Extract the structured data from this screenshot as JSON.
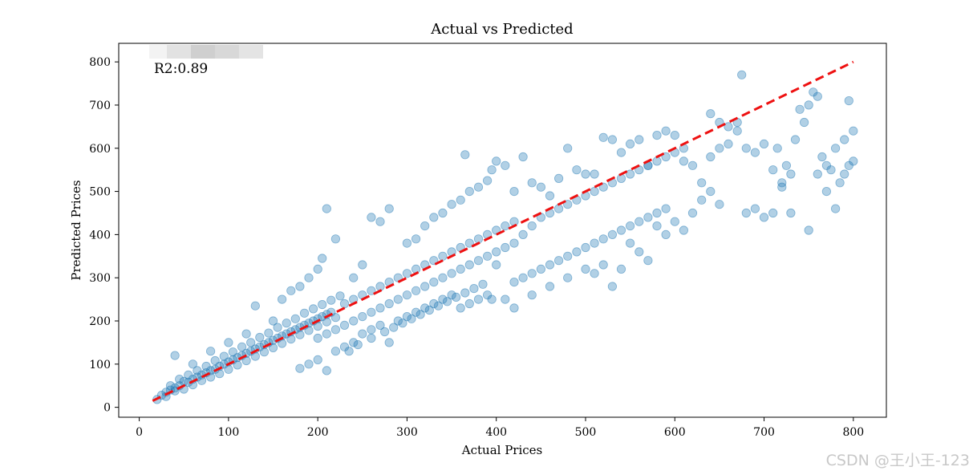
{
  "chart_data": {
    "type": "scatter",
    "title": "Actual vs Predicted",
    "xlabel": "Actual Prices",
    "ylabel": "Predicted Prices",
    "xlim": [
      -23,
      837
    ],
    "ylim": [
      -23,
      843
    ],
    "xticks": [
      0,
      100,
      200,
      300,
      400,
      500,
      600,
      700,
      800
    ],
    "yticks": [
      0,
      100,
      200,
      300,
      400,
      500,
      600,
      700,
      800
    ],
    "grid": false,
    "annotation": "R2:0.89",
    "series": [
      {
        "kind": "scatter",
        "color": "#1f77b4",
        "alpha": 0.35,
        "points": [
          [
            20,
            18
          ],
          [
            25,
            28
          ],
          [
            30,
            35
          ],
          [
            35,
            40
          ],
          [
            40,
            45
          ],
          [
            45,
            50
          ],
          [
            50,
            60
          ],
          [
            55,
            58
          ],
          [
            60,
            65
          ],
          [
            65,
            70
          ],
          [
            70,
            75
          ],
          [
            75,
            80
          ],
          [
            80,
            85
          ],
          [
            85,
            88
          ],
          [
            90,
            95
          ],
          [
            95,
            100
          ],
          [
            100,
            105
          ],
          [
            105,
            110
          ],
          [
            110,
            115
          ],
          [
            115,
            120
          ],
          [
            120,
            125
          ],
          [
            125,
            130
          ],
          [
            130,
            135
          ],
          [
            135,
            140
          ],
          [
            140,
            145
          ],
          [
            145,
            150
          ],
          [
            150,
            155
          ],
          [
            155,
            160
          ],
          [
            160,
            165
          ],
          [
            165,
            170
          ],
          [
            170,
            175
          ],
          [
            175,
            180
          ],
          [
            180,
            185
          ],
          [
            185,
            190
          ],
          [
            190,
            195
          ],
          [
            195,
            200
          ],
          [
            200,
            205
          ],
          [
            205,
            210
          ],
          [
            210,
            215
          ],
          [
            215,
            220
          ],
          [
            30,
            25
          ],
          [
            40,
            38
          ],
          [
            50,
            42
          ],
          [
            60,
            52
          ],
          [
            70,
            62
          ],
          [
            80,
            70
          ],
          [
            90,
            78
          ],
          [
            100,
            88
          ],
          [
            110,
            98
          ],
          [
            120,
            108
          ],
          [
            130,
            118
          ],
          [
            140,
            128
          ],
          [
            150,
            138
          ],
          [
            160,
            148
          ],
          [
            170,
            158
          ],
          [
            180,
            168
          ],
          [
            190,
            178
          ],
          [
            200,
            188
          ],
          [
            210,
            198
          ],
          [
            220,
            208
          ],
          [
            35,
            50
          ],
          [
            45,
            65
          ],
          [
            55,
            75
          ],
          [
            65,
            85
          ],
          [
            75,
            95
          ],
          [
            85,
            108
          ],
          [
            95,
            118
          ],
          [
            105,
            128
          ],
          [
            115,
            140
          ],
          [
            125,
            150
          ],
          [
            135,
            162
          ],
          [
            145,
            172
          ],
          [
            155,
            185
          ],
          [
            165,
            195
          ],
          [
            175,
            205
          ],
          [
            185,
            218
          ],
          [
            195,
            228
          ],
          [
            205,
            238
          ],
          [
            215,
            248
          ],
          [
            225,
            258
          ],
          [
            40,
            120
          ],
          [
            60,
            100
          ],
          [
            80,
            130
          ],
          [
            100,
            150
          ],
          [
            120,
            170
          ],
          [
            130,
            235
          ],
          [
            150,
            200
          ],
          [
            160,
            250
          ],
          [
            170,
            270
          ],
          [
            180,
            280
          ],
          [
            190,
            300
          ],
          [
            200,
            320
          ],
          [
            205,
            345
          ],
          [
            210,
            460
          ],
          [
            220,
            390
          ],
          [
            240,
            300
          ],
          [
            250,
            330
          ],
          [
            260,
            440
          ],
          [
            270,
            430
          ],
          [
            280,
            460
          ],
          [
            220,
            180
          ],
          [
            230,
            190
          ],
          [
            240,
            200
          ],
          [
            250,
            210
          ],
          [
            260,
            220
          ],
          [
            270,
            230
          ],
          [
            280,
            240
          ],
          [
            290,
            250
          ],
          [
            300,
            260
          ],
          [
            310,
            270
          ],
          [
            320,
            280
          ],
          [
            330,
            290
          ],
          [
            340,
            300
          ],
          [
            350,
            310
          ],
          [
            360,
            320
          ],
          [
            370,
            330
          ],
          [
            380,
            340
          ],
          [
            390,
            350
          ],
          [
            400,
            360
          ],
          [
            410,
            370
          ],
          [
            230,
            240
          ],
          [
            240,
            250
          ],
          [
            250,
            260
          ],
          [
            260,
            270
          ],
          [
            270,
            280
          ],
          [
            280,
            290
          ],
          [
            290,
            300
          ],
          [
            300,
            310
          ],
          [
            310,
            320
          ],
          [
            320,
            330
          ],
          [
            330,
            340
          ],
          [
            340,
            350
          ],
          [
            350,
            360
          ],
          [
            360,
            370
          ],
          [
            370,
            380
          ],
          [
            380,
            390
          ],
          [
            390,
            400
          ],
          [
            400,
            410
          ],
          [
            410,
            420
          ],
          [
            420,
            430
          ],
          [
            200,
            160
          ],
          [
            210,
            170
          ],
          [
            220,
            130
          ],
          [
            230,
            140
          ],
          [
            240,
            150
          ],
          [
            250,
            170
          ],
          [
            260,
            180
          ],
          [
            270,
            190
          ],
          [
            280,
            150
          ],
          [
            290,
            200
          ],
          [
            300,
            210
          ],
          [
            310,
            220
          ],
          [
            320,
            230
          ],
          [
            330,
            240
          ],
          [
            340,
            250
          ],
          [
            350,
            260
          ],
          [
            360,
            230
          ],
          [
            370,
            240
          ],
          [
            380,
            250
          ],
          [
            390,
            260
          ],
          [
            180,
            90
          ],
          [
            190,
            100
          ],
          [
            200,
            110
          ],
          [
            210,
            85
          ],
          [
            235,
            130
          ],
          [
            245,
            145
          ],
          [
            260,
            160
          ],
          [
            275,
            175
          ],
          [
            285,
            185
          ],
          [
            295,
            195
          ],
          [
            305,
            205
          ],
          [
            315,
            215
          ],
          [
            325,
            225
          ],
          [
            335,
            235
          ],
          [
            345,
            245
          ],
          [
            355,
            255
          ],
          [
            365,
            265
          ],
          [
            375,
            275
          ],
          [
            385,
            285
          ],
          [
            395,
            250
          ],
          [
            300,
            380
          ],
          [
            310,
            390
          ],
          [
            320,
            420
          ],
          [
            330,
            440
          ],
          [
            340,
            450
          ],
          [
            350,
            470
          ],
          [
            360,
            480
          ],
          [
            365,
            585
          ],
          [
            370,
            500
          ],
          [
            380,
            510
          ],
          [
            390,
            525
          ],
          [
            395,
            550
          ],
          [
            400,
            570
          ],
          [
            410,
            560
          ],
          [
            420,
            500
          ],
          [
            430,
            580
          ],
          [
            440,
            520
          ],
          [
            450,
            510
          ],
          [
            460,
            490
          ],
          [
            470,
            530
          ],
          [
            400,
            330
          ],
          [
            410,
            250
          ],
          [
            420,
            290
          ],
          [
            430,
            300
          ],
          [
            440,
            310
          ],
          [
            450,
            320
          ],
          [
            460,
            330
          ],
          [
            470,
            340
          ],
          [
            480,
            350
          ],
          [
            490,
            360
          ],
          [
            500,
            370
          ],
          [
            510,
            380
          ],
          [
            520,
            390
          ],
          [
            530,
            400
          ],
          [
            540,
            410
          ],
          [
            550,
            420
          ],
          [
            560,
            430
          ],
          [
            570,
            440
          ],
          [
            580,
            450
          ],
          [
            590,
            460
          ],
          [
            420,
            380
          ],
          [
            430,
            400
          ],
          [
            440,
            420
          ],
          [
            450,
            440
          ],
          [
            460,
            450
          ],
          [
            470,
            460
          ],
          [
            480,
            470
          ],
          [
            490,
            480
          ],
          [
            500,
            490
          ],
          [
            510,
            500
          ],
          [
            520,
            510
          ],
          [
            530,
            520
          ],
          [
            540,
            530
          ],
          [
            550,
            540
          ],
          [
            560,
            550
          ],
          [
            570,
            560
          ],
          [
            580,
            570
          ],
          [
            590,
            580
          ],
          [
            600,
            590
          ],
          [
            610,
            600
          ],
          [
            480,
            600
          ],
          [
            490,
            550
          ],
          [
            500,
            540
          ],
          [
            510,
            540
          ],
          [
            520,
            625
          ],
          [
            530,
            620
          ],
          [
            540,
            590
          ],
          [
            550,
            610
          ],
          [
            560,
            620
          ],
          [
            570,
            560
          ],
          [
            580,
            630
          ],
          [
            590,
            640
          ],
          [
            600,
            630
          ],
          [
            610,
            570
          ],
          [
            620,
            560
          ],
          [
            630,
            520
          ],
          [
            640,
            580
          ],
          [
            650,
            600
          ],
          [
            660,
            610
          ],
          [
            670,
            640
          ],
          [
            420,
            230
          ],
          [
            440,
            260
          ],
          [
            460,
            280
          ],
          [
            480,
            300
          ],
          [
            500,
            320
          ],
          [
            510,
            310
          ],
          [
            520,
            330
          ],
          [
            530,
            280
          ],
          [
            540,
            320
          ],
          [
            550,
            380
          ],
          [
            560,
            360
          ],
          [
            570,
            340
          ],
          [
            580,
            420
          ],
          [
            590,
            400
          ],
          [
            600,
            430
          ],
          [
            610,
            410
          ],
          [
            620,
            450
          ],
          [
            630,
            480
          ],
          [
            640,
            500
          ],
          [
            650,
            470
          ],
          [
            640,
            680
          ],
          [
            650,
            660
          ],
          [
            660,
            650
          ],
          [
            670,
            660
          ],
          [
            675,
            770
          ],
          [
            680,
            600
          ],
          [
            690,
            590
          ],
          [
            700,
            610
          ],
          [
            710,
            550
          ],
          [
            720,
            520
          ],
          [
            730,
            540
          ],
          [
            740,
            690
          ],
          [
            750,
            700
          ],
          [
            755,
            730
          ],
          [
            760,
            720
          ],
          [
            770,
            560
          ],
          [
            780,
            600
          ],
          [
            790,
            620
          ],
          [
            795,
            710
          ],
          [
            800,
            640
          ],
          [
            680,
            450
          ],
          [
            690,
            460
          ],
          [
            700,
            440
          ],
          [
            710,
            450
          ],
          [
            720,
            510
          ],
          [
            730,
            450
          ],
          [
            750,
            410
          ],
          [
            760,
            540
          ],
          [
            770,
            500
          ],
          [
            780,
            460
          ],
          [
            790,
            540
          ],
          [
            800,
            570
          ],
          [
            795,
            560
          ],
          [
            785,
            520
          ],
          [
            775,
            550
          ],
          [
            765,
            580
          ],
          [
            745,
            660
          ],
          [
            735,
            620
          ],
          [
            725,
            560
          ],
          [
            715,
            600
          ]
        ]
      },
      {
        "kind": "line",
        "style": "dashed",
        "color": "#ee1111",
        "x": [
          15,
          800
        ],
        "y": [
          15,
          800
        ]
      }
    ]
  },
  "watermark": "CSDN @王小王-123"
}
